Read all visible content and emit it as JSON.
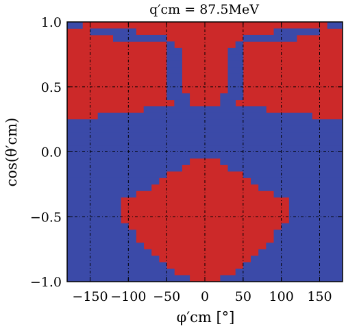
{
  "chart_data": {
    "type": "heatmap",
    "title": "q′cm = 87.5MeV",
    "xlabel": "φ′cm   [°]",
    "ylabel": "cos(θ′cm)",
    "xlim": [
      -180,
      180
    ],
    "ylim": [
      -1.0,
      1.0
    ],
    "x_ticks": [
      "−150",
      "−100",
      "−50",
      "0",
      "50",
      "100",
      "150"
    ],
    "y_ticks": [
      "1.0",
      "0.5",
      "0.0",
      "−0.5",
      "−1.0"
    ],
    "grid": true,
    "colors": {
      "region_a": "#cc2929",
      "region_b": "#3b4aa8"
    },
    "x_bins": 36,
    "y_bins": 40,
    "region_b_runs": [
      [
        [
          0,
          1
        ],
        [
          34,
          35
        ]
      ],
      [
        [
          3,
          8
        ],
        [
          27,
          32
        ]
      ],
      [
        [
          6,
          12
        ],
        [
          23,
          29
        ]
      ],
      [
        [
          9,
          13
        ],
        [
          22,
          26
        ]
      ],
      [
        [
          10,
          14
        ],
        [
          21,
          25
        ]
      ],
      [
        [
          11,
          14
        ],
        [
          21,
          24
        ]
      ],
      [
        [
          11,
          14
        ],
        [
          21,
          24
        ]
      ],
      [
        [
          11,
          14
        ],
        [
          21,
          24
        ]
      ],
      [
        [
          11,
          14
        ],
        [
          21,
          24
        ]
      ],
      [
        [
          11,
          14
        ],
        [
          21,
          24
        ]
      ],
      [
        [
          12,
          14
        ],
        [
          21,
          23
        ]
      ],
      [
        [
          13,
          15
        ],
        [
          20,
          22
        ]
      ],
      [
        [
          14,
          15
        ],
        [
          20,
          21
        ]
      ],
      [
        [
          10,
          25
        ]
      ],
      [
        [
          4,
          31
        ]
      ],
      [
        [
          0,
          35
        ]
      ],
      [
        [
          0,
          35
        ]
      ],
      [
        [
          0,
          35
        ]
      ],
      [
        [
          0,
          35
        ]
      ],
      [
        [
          0,
          35
        ]
      ],
      [
        [
          0,
          35
        ]
      ],
      [
        [
          0,
          35
        ]
      ],
      [
        [
          0,
          35
        ]
      ],
      [
        [
          0,
          35
        ]
      ],
      [
        [
          0,
          35
        ]
      ],
      [
        [
          0,
          35
        ]
      ],
      [
        [
          0,
          35
        ]
      ],
      [
        [
          0,
          35
        ]
      ],
      [
        [
          0,
          35
        ]
      ],
      [
        [
          0,
          35
        ]
      ],
      [
        [
          0,
          35
        ]
      ],
      [
        [
          0,
          35
        ]
      ],
      [
        [
          0,
          35
        ]
      ],
      [
        [
          0,
          35
        ]
      ],
      [
        [
          0,
          35
        ]
      ],
      [
        [
          0,
          35
        ]
      ],
      [
        [
          0,
          35
        ]
      ],
      [
        [
          0,
          35
        ]
      ],
      [
        [
          0,
          35
        ]
      ],
      [
        [
          0,
          35
        ]
      ]
    ],
    "region_a_runs": [
      [],
      [],
      [],
      [],
      [],
      [],
      [],
      [],
      [],
      [],
      [],
      [],
      [],
      [],
      [],
      [],
      [],
      [],
      [],
      [],
      [],
      [
        [
          16,
          19
        ]
      ],
      [
        [
          15,
          20
        ]
      ],
      [
        [
          13,
          22
        ]
      ],
      [
        [
          12,
          23
        ]
      ],
      [
        [
          11,
          24
        ]
      ],
      [
        [
          9,
          26
        ]
      ],
      [
        [
          7,
          28
        ]
      ],
      [
        [
          7,
          28
        ]
      ],
      [
        [
          7,
          28
        ]
      ],
      [
        [
          7,
          28
        ]
      ],
      [
        [
          8,
          27
        ]
      ],
      [
        [
          9,
          26
        ]
      ],
      [
        [
          9,
          26
        ]
      ],
      [
        [
          10,
          25
        ]
      ],
      [
        [
          11,
          24
        ]
      ],
      [
        [
          12,
          23
        ]
      ],
      [
        [
          13,
          22
        ]
      ],
      [
        [
          14,
          21
        ]
      ],
      [
        [
          16,
          19
        ]
      ]
    ],
    "region_a_upper_pockets": [
      [],
      [],
      [],
      [
        [
          9,
          12
        ],
        [
          23,
          26
        ]
      ],
      [
        [
          8,
          12
        ],
        [
          23,
          27
        ]
      ],
      [
        [
          8,
          12
        ],
        [
          23,
          27
        ]
      ],
      [
        [
          8,
          12
        ],
        [
          23,
          27
        ]
      ],
      [
        [
          8,
          12
        ],
        [
          23,
          27
        ]
      ],
      [
        [
          8,
          12
        ],
        [
          23,
          27
        ]
      ],
      [
        [
          8,
          12
        ],
        [
          23,
          27
        ]
      ],
      [
        [
          9,
          12
        ],
        [
          23,
          26
        ]
      ],
      [
        [
          9,
          12
        ],
        [
          23,
          26
        ]
      ],
      [
        [
          10,
          12
        ],
        [
          23,
          25
        ]
      ]
    ],
    "region_b_dots": [
      [
        18,
        13
      ],
      [
        18,
        22
      ],
      [
        19,
        15
      ],
      [
        19,
        20
      ],
      [
        21,
        11
      ],
      [
        21,
        24
      ],
      [
        22,
        10
      ],
      [
        22,
        25
      ]
    ]
  }
}
